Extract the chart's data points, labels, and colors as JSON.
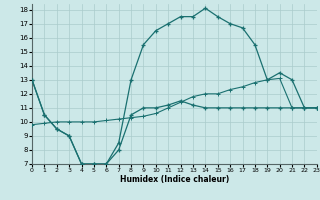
{
  "xlabel": "Humidex (Indice chaleur)",
  "bg_color": "#cce8e8",
  "grid_color": "#aacccc",
  "line_color": "#1a7070",
  "xlim": [
    0,
    23
  ],
  "ylim": [
    7,
    18.4
  ],
  "xticks": [
    0,
    1,
    2,
    3,
    4,
    5,
    6,
    7,
    8,
    9,
    10,
    11,
    12,
    13,
    14,
    15,
    16,
    17,
    18,
    19,
    20,
    21,
    22,
    23
  ],
  "yticks": [
    7,
    8,
    9,
    10,
    11,
    12,
    13,
    14,
    15,
    16,
    17,
    18
  ],
  "curve_x": [
    0,
    1,
    2,
    3,
    4,
    5,
    6,
    7,
    8,
    9,
    10,
    11,
    12,
    13,
    14,
    15,
    16,
    17,
    18,
    19,
    20,
    21,
    22,
    23
  ],
  "curve_y": [
    13,
    10.5,
    9.5,
    9.0,
    7.0,
    7.0,
    7.0,
    8.5,
    13.0,
    15.5,
    16.5,
    17.0,
    17.5,
    17.5,
    18.1,
    17.5,
    17.0,
    16.7,
    15.5,
    13.0,
    13.5,
    13.0,
    11.0,
    11.0
  ],
  "low_x": [
    0,
    1,
    2,
    3,
    4,
    5,
    6,
    7,
    8,
    9,
    10,
    11,
    12,
    13,
    14,
    15,
    16,
    17,
    18,
    19,
    20,
    21,
    22,
    23
  ],
  "low_y": [
    13,
    10.5,
    9.5,
    9.0,
    7.0,
    7.0,
    7.0,
    8.0,
    10.5,
    11.0,
    11.0,
    11.2,
    11.5,
    11.2,
    11.0,
    11.0,
    11.0,
    11.0,
    11.0,
    11.0,
    11.0,
    11.0,
    11.0,
    11.0
  ],
  "flat_x": [
    0,
    1,
    2,
    3,
    4,
    5,
    6,
    7,
    8,
    9,
    10,
    11,
    12,
    13,
    14,
    15,
    16,
    17,
    18,
    19,
    20,
    21,
    22,
    23
  ],
  "flat_y": [
    9.8,
    9.9,
    10.0,
    10.0,
    10.0,
    10.0,
    10.1,
    10.2,
    10.3,
    10.4,
    10.6,
    11.0,
    11.4,
    11.8,
    12.0,
    12.0,
    12.3,
    12.5,
    12.8,
    13.0,
    13.1,
    11.0,
    11.0,
    11.0
  ]
}
